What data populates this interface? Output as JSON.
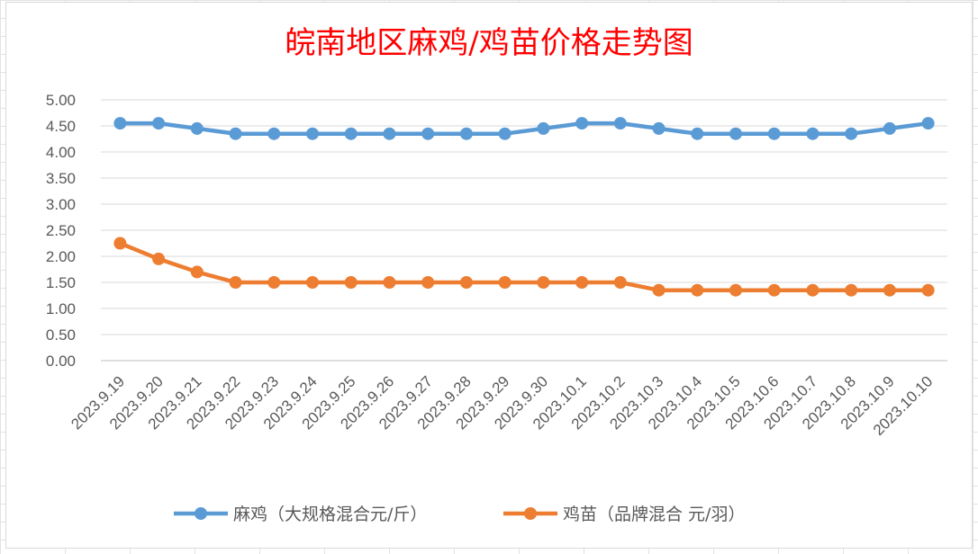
{
  "chart_data": {
    "type": "line",
    "title": "皖南地区麻鸡/鸡苗价格走势图",
    "xlabel": "",
    "ylabel": "",
    "ylim": [
      0,
      5
    ],
    "ytick_step": 0.5,
    "grid": true,
    "legend_position": "bottom",
    "categories": [
      "2023.9.19",
      "2023.9.20",
      "2023.9.21",
      "2023.9.22",
      "2023.9.23",
      "2023.9.24",
      "2023.9.25",
      "2023.9.26",
      "2023.9.27",
      "2023.9.28",
      "2023.9.29",
      "2023.9.30",
      "2023.10.1",
      "2023.10.2",
      "2023.10.3",
      "2023.10.4",
      "2023.10.5",
      "2023.10.6",
      "2023.10.7",
      "2023.10.8",
      "2023.10.9",
      "2023.10.10"
    ],
    "series": [
      {
        "name": "麻鸡（大规格混合元/斤）",
        "color": "#5b9bd5",
        "values": [
          4.55,
          4.55,
          4.45,
          4.35,
          4.35,
          4.35,
          4.35,
          4.35,
          4.35,
          4.35,
          4.35,
          4.45,
          4.55,
          4.55,
          4.45,
          4.35,
          4.35,
          4.35,
          4.35,
          4.35,
          4.45,
          4.55
        ]
      },
      {
        "name": "鸡苗（品牌混合 元/羽）",
        "color": "#ed7d31",
        "values": [
          2.25,
          1.95,
          1.7,
          1.5,
          1.5,
          1.5,
          1.5,
          1.5,
          1.5,
          1.5,
          1.5,
          1.5,
          1.5,
          1.5,
          1.35,
          1.35,
          1.35,
          1.35,
          1.35,
          1.35,
          1.35,
          1.35
        ]
      }
    ]
  }
}
